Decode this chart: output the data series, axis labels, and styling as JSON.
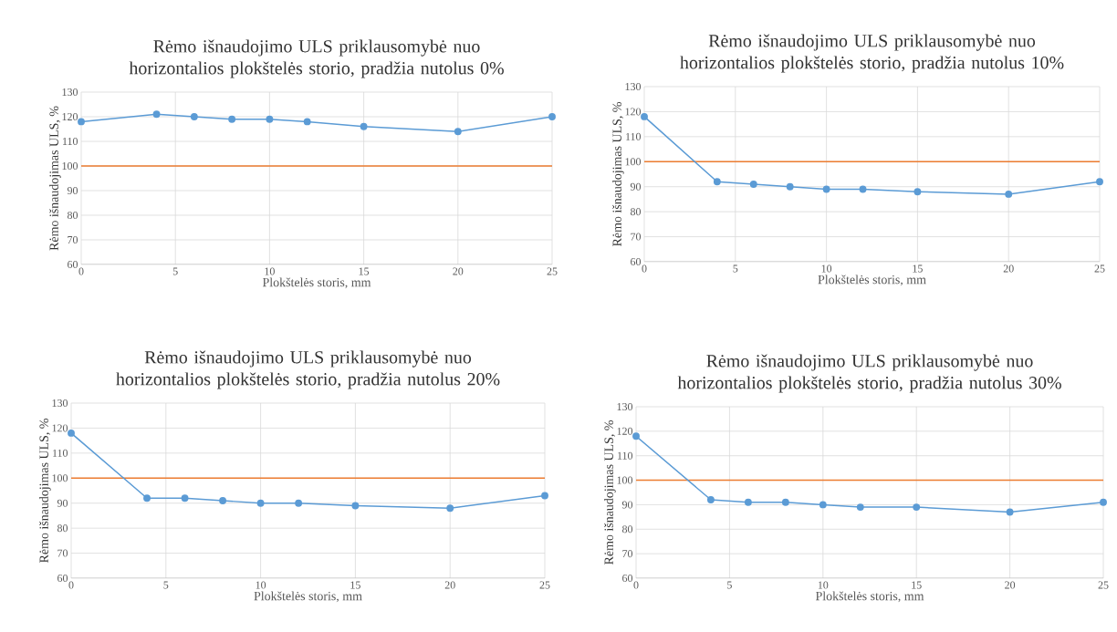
{
  "chart_data": [
    {
      "type": "line",
      "title": "Rėmo išnaudojimo ULS priklausomybė nuo horizontalios plokštelės storio, pradžia nutolus 0%",
      "xlabel": "Plokštelės storis, mm",
      "ylabel": "Rėmo išnaudojimas ULS, %",
      "x": [
        0,
        4,
        6,
        8,
        10,
        12,
        15,
        20,
        25
      ],
      "series": [
        {
          "color": "#5b9bd5",
          "values": [
            118,
            121,
            120,
            119,
            119,
            118,
            116,
            114,
            120
          ]
        }
      ],
      "ref_lines": [
        {
          "axis": "y",
          "value": 100,
          "color": "#ed7d31"
        }
      ],
      "xlim": [
        0,
        25
      ],
      "xticks": [
        0,
        5,
        10,
        15,
        20,
        25
      ],
      "ylim": [
        60,
        130
      ],
      "yticks": [
        60,
        70,
        80,
        90,
        100,
        110,
        120,
        130
      ],
      "grid": true,
      "marker": "circle"
    },
    {
      "type": "line",
      "title": "Rėmo išnaudojimo ULS priklausomybė nuo horizontalios plokštelės storio, pradžia nutolus 10%",
      "xlabel": "Plokštelės storis, mm",
      "ylabel": "Rėmo išnaudojimas ULS, %",
      "x": [
        0,
        4,
        6,
        8,
        10,
        12,
        15,
        20,
        25
      ],
      "series": [
        {
          "color": "#5b9bd5",
          "values": [
            118,
            92,
            91,
            90,
            89,
            89,
            88,
            87,
            92
          ]
        }
      ],
      "ref_lines": [
        {
          "axis": "y",
          "value": 100,
          "color": "#ed7d31"
        }
      ],
      "xlim": [
        0,
        25
      ],
      "xticks": [
        0,
        5,
        10,
        15,
        20,
        25
      ],
      "ylim": [
        60,
        130
      ],
      "yticks": [
        60,
        70,
        80,
        90,
        100,
        110,
        120,
        130
      ],
      "grid": true,
      "marker": "circle"
    },
    {
      "type": "line",
      "title": "Rėmo išnaudojimo ULS priklausomybė nuo horizontalios plokštelės storio, pradžia nutolus 20%",
      "xlabel": "Plokštelės storis, mm",
      "ylabel": "Rėmo išnaudojimas ULS, %",
      "x": [
        0,
        4,
        6,
        8,
        10,
        12,
        15,
        20,
        25
      ],
      "series": [
        {
          "color": "#5b9bd5",
          "values": [
            118,
            92,
            92,
            91,
            90,
            90,
            89,
            88,
            93
          ]
        }
      ],
      "ref_lines": [
        {
          "axis": "y",
          "value": 100,
          "color": "#ed7d31"
        }
      ],
      "xlim": [
        0,
        25
      ],
      "xticks": [
        0,
        5,
        10,
        15,
        20,
        25
      ],
      "ylim": [
        60,
        130
      ],
      "yticks": [
        60,
        70,
        80,
        90,
        100,
        110,
        120,
        130
      ],
      "grid": true,
      "marker": "circle"
    },
    {
      "type": "line",
      "title": "Rėmo išnaudojimo ULS priklausomybė nuo horizontalios plokštelės storio, pradžia nutolus 30%",
      "xlabel": "Plokštelės storis, mm",
      "ylabel": "Rėmo išnaudojimas ULS, %",
      "x": [
        0,
        4,
        6,
        8,
        10,
        12,
        15,
        20,
        25
      ],
      "series": [
        {
          "color": "#5b9bd5",
          "values": [
            118,
            92,
            91,
            91,
            90,
            89,
            89,
            87,
            91
          ]
        }
      ],
      "ref_lines": [
        {
          "axis": "y",
          "value": 100,
          "color": "#ed7d31"
        }
      ],
      "xlim": [
        0,
        25
      ],
      "xticks": [
        0,
        5,
        10,
        15,
        20,
        25
      ],
      "ylim": [
        60,
        130
      ],
      "yticks": [
        60,
        70,
        80,
        90,
        100,
        110,
        120,
        130
      ],
      "grid": true,
      "marker": "circle"
    }
  ]
}
